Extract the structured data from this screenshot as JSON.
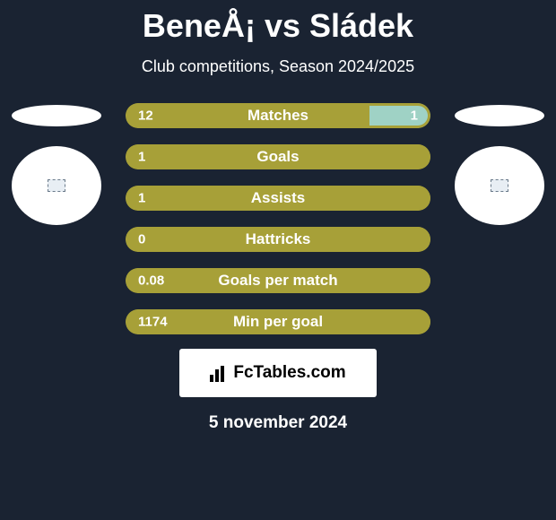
{
  "header": {
    "title": "BeneÅ¡ vs Sládek",
    "subtitle": "Club competitions, Season 2024/2025"
  },
  "colors": {
    "background": "#1a2332",
    "bar_primary": "#a7a038",
    "bar_secondary": "#9fd2c5",
    "text": "#ffffff"
  },
  "players": {
    "left": {
      "name": "BeneÅ¡"
    },
    "right": {
      "name": "Sládek"
    }
  },
  "stats": [
    {
      "label": "Matches",
      "left_value": "12",
      "right_value": "1",
      "left_pct": 80,
      "right_pct": 20,
      "show_right": true
    },
    {
      "label": "Goals",
      "left_value": "1",
      "right_value": "",
      "left_pct": 100,
      "right_pct": 0,
      "show_right": false
    },
    {
      "label": "Assists",
      "left_value": "1",
      "right_value": "",
      "left_pct": 100,
      "right_pct": 0,
      "show_right": false
    },
    {
      "label": "Hattricks",
      "left_value": "0",
      "right_value": "",
      "left_pct": 100,
      "right_pct": 0,
      "show_right": false
    },
    {
      "label": "Goals per match",
      "left_value": "0.08",
      "right_value": "",
      "left_pct": 100,
      "right_pct": 0,
      "show_right": false
    },
    {
      "label": "Min per goal",
      "left_value": "1174",
      "right_value": "",
      "left_pct": 100,
      "right_pct": 0,
      "show_right": false
    }
  ],
  "footer": {
    "logo_text": "FcTables.com",
    "date": "5 november 2024"
  }
}
